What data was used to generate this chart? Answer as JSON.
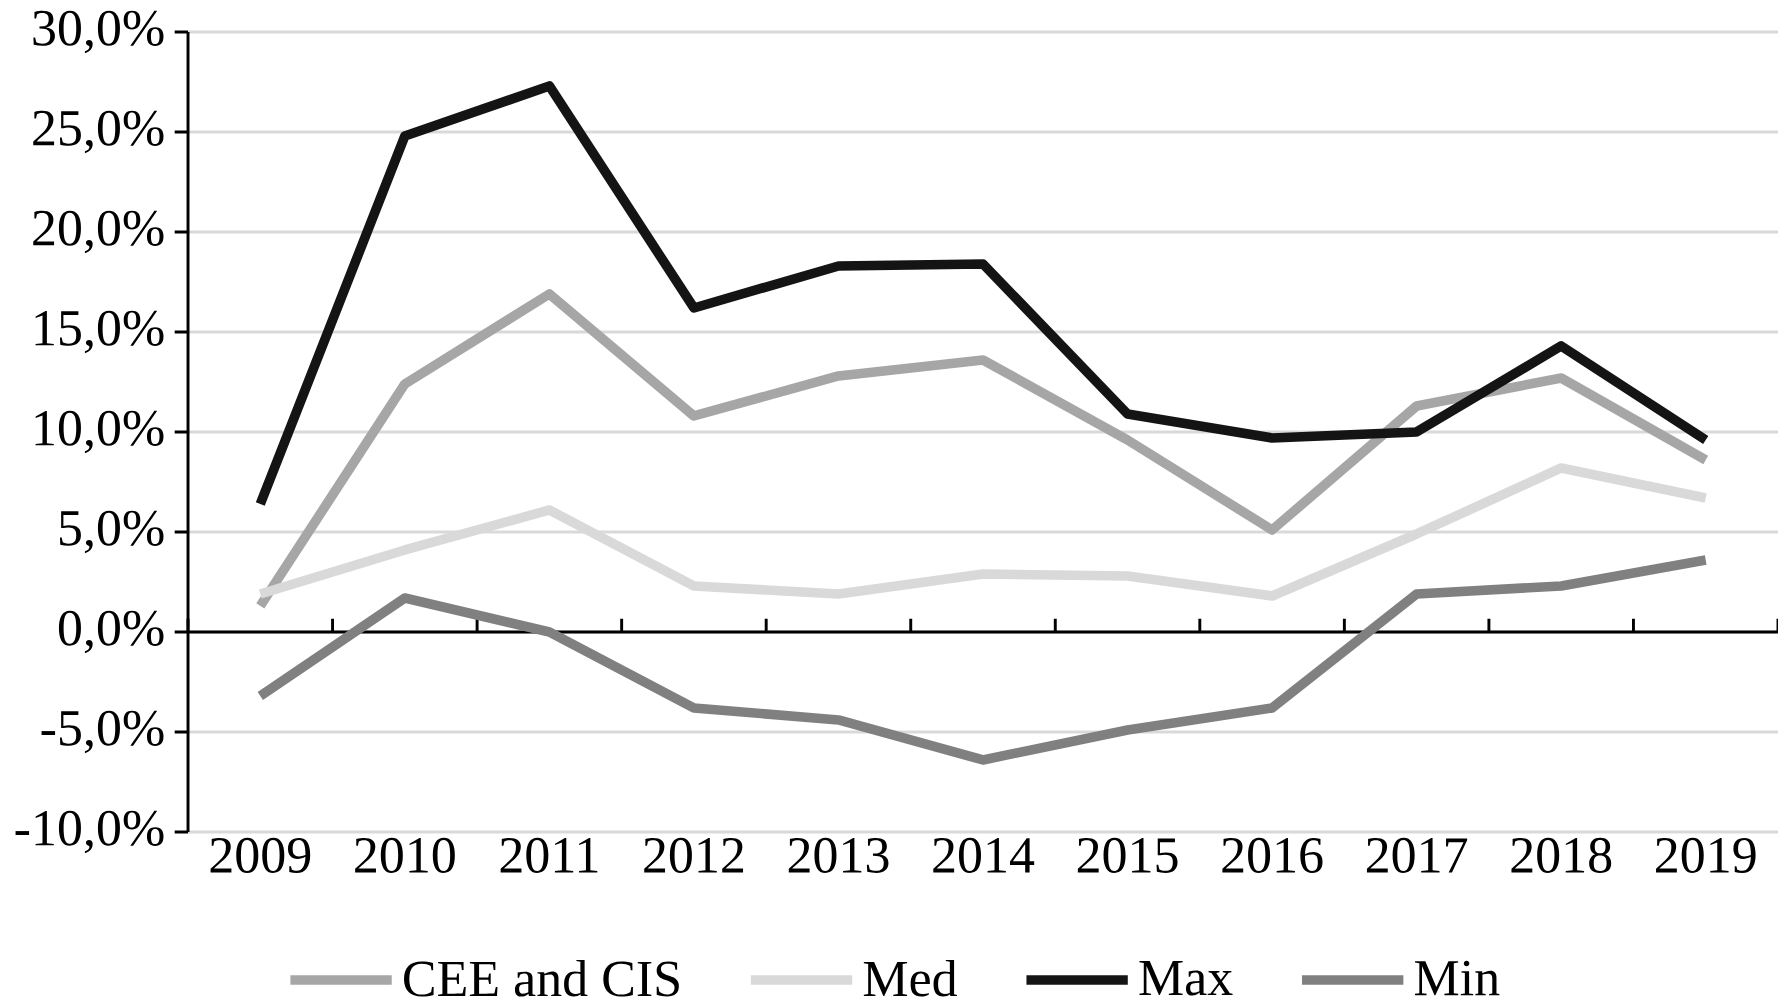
{
  "chart_data": {
    "type": "line",
    "categories": [
      "2009",
      "2010",
      "2011",
      "2012",
      "2013",
      "2014",
      "2015",
      "2016",
      "2017",
      "2018",
      "2019"
    ],
    "series": [
      {
        "name": "CEE and CIS",
        "color": "#a6a6a6",
        "values": [
          1.3,
          12.4,
          16.9,
          10.8,
          12.8,
          13.6,
          9.6,
          5.1,
          11.3,
          12.7,
          8.6
        ]
      },
      {
        "name": "Med",
        "color": "#d9d9d9",
        "values": [
          1.9,
          4.1,
          6.1,
          2.3,
          1.9,
          2.9,
          2.8,
          1.8,
          4.9,
          8.2,
          6.7
        ]
      },
      {
        "name": "Max",
        "color": "#141414",
        "values": [
          6.4,
          24.8,
          27.3,
          16.2,
          18.3,
          18.4,
          10.9,
          9.7,
          10.0,
          14.3,
          9.6
        ]
      },
      {
        "name": "Min",
        "color": "#808080",
        "values": [
          -3.2,
          1.7,
          0.0,
          -3.8,
          -4.4,
          -6.4,
          -4.9,
          -3.8,
          1.9,
          2.3,
          3.6
        ]
      }
    ],
    "ylim": [
      -10,
      30
    ],
    "yticks": [
      {
        "value": 30,
        "label": "30,0%"
      },
      {
        "value": 25,
        "label": "25,0%"
      },
      {
        "value": 20,
        "label": "20,0%"
      },
      {
        "value": 15,
        "label": "15,0%"
      },
      {
        "value": 10,
        "label": "10,0%"
      },
      {
        "value": 5,
        "label": "5,0%"
      },
      {
        "value": 0,
        "label": "0,0%"
      },
      {
        "value": -5,
        "label": "-5,0%"
      },
      {
        "value": -10,
        "label": "-10,0%"
      }
    ],
    "grid": "y",
    "legend": "bottom"
  }
}
